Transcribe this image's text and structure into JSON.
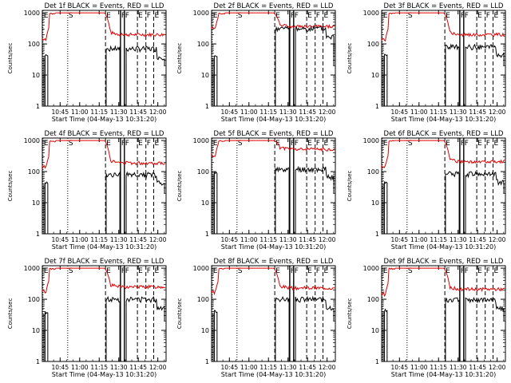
{
  "chart_data": {
    "type": "line",
    "grid_rows": 3,
    "grid_cols": 3,
    "ylabel": "Counts/sec",
    "xlabel": "Start Time (04-May-13 10:31:20)",
    "xticks": [
      "10:45",
      "11:00",
      "11:15",
      "11:30",
      "11:45",
      "12:00"
    ],
    "yticks": [
      "1",
      "10",
      "100",
      "1000"
    ],
    "ylim": [
      1,
      1200
    ],
    "xlim_minutes_from_start": [
      0,
      95
    ],
    "series_names": [
      "Events",
      "LLD"
    ],
    "series_colors": {
      "Events": "#000000",
      "LLD": "#e00000"
    },
    "markers": [
      {
        "label": "E",
        "t": 0.5,
        "style": "dotted"
      },
      {
        "label": "S",
        "t": 19.5,
        "style": "dotted"
      },
      {
        "label": "E",
        "t": 48.5,
        "style": "dashed"
      },
      {
        "label": "F",
        "t": 60,
        "style": "solid"
      },
      {
        "label": "F",
        "t": 63,
        "style": "solid"
      },
      {
        "label": "E",
        "t": 73,
        "style": "dashed"
      },
      {
        "label": "F",
        "t": 79.5,
        "style": "dashed"
      },
      {
        "label": "E",
        "t": 85.5,
        "style": "dashed"
      }
    ],
    "panels": [
      {
        "title": "Det 1f BLACK = Events, RED = LLD",
        "events_level": 70,
        "lld_level": 200,
        "events_peak": 42,
        "lld_pre": 150
      },
      {
        "title": "Det 2f BLACK = Events, RED = LLD",
        "events_level": 310,
        "lld_level": 360,
        "events_peak": 40,
        "lld_pre": 320
      },
      {
        "title": "Det 3f BLACK = Events, RED = LLD",
        "events_level": 80,
        "lld_level": 200,
        "events_peak": 45,
        "lld_pre": 140
      },
      {
        "title": "Det 4f BLACK = Events, RED = LLD",
        "events_level": 80,
        "lld_level": 190,
        "events_peak": 42,
        "lld_pre": 140
      },
      {
        "title": "Det 5f BLACK = Events, RED = LLD",
        "events_level": 120,
        "lld_level": 520,
        "events_peak": 90,
        "lld_pre": 340
      },
      {
        "title": "Det 6f BLACK = Events, RED = LLD",
        "events_level": 85,
        "lld_level": 210,
        "events_peak": 45,
        "lld_pre": 150
      },
      {
        "title": "Det 7f BLACK = Events, RED = LLD",
        "events_level": 100,
        "lld_level": 250,
        "events_peak": 38,
        "lld_pre": 180
      },
      {
        "title": "Det 8f BLACK = Events, RED = LLD",
        "events_level": 100,
        "lld_level": 230,
        "events_peak": 40,
        "lld_pre": 170
      },
      {
        "title": "Det 9f BLACK = Events, RED = LLD",
        "events_level": 95,
        "lld_level": 210,
        "events_peak": 45,
        "lld_pre": 150
      }
    ]
  }
}
